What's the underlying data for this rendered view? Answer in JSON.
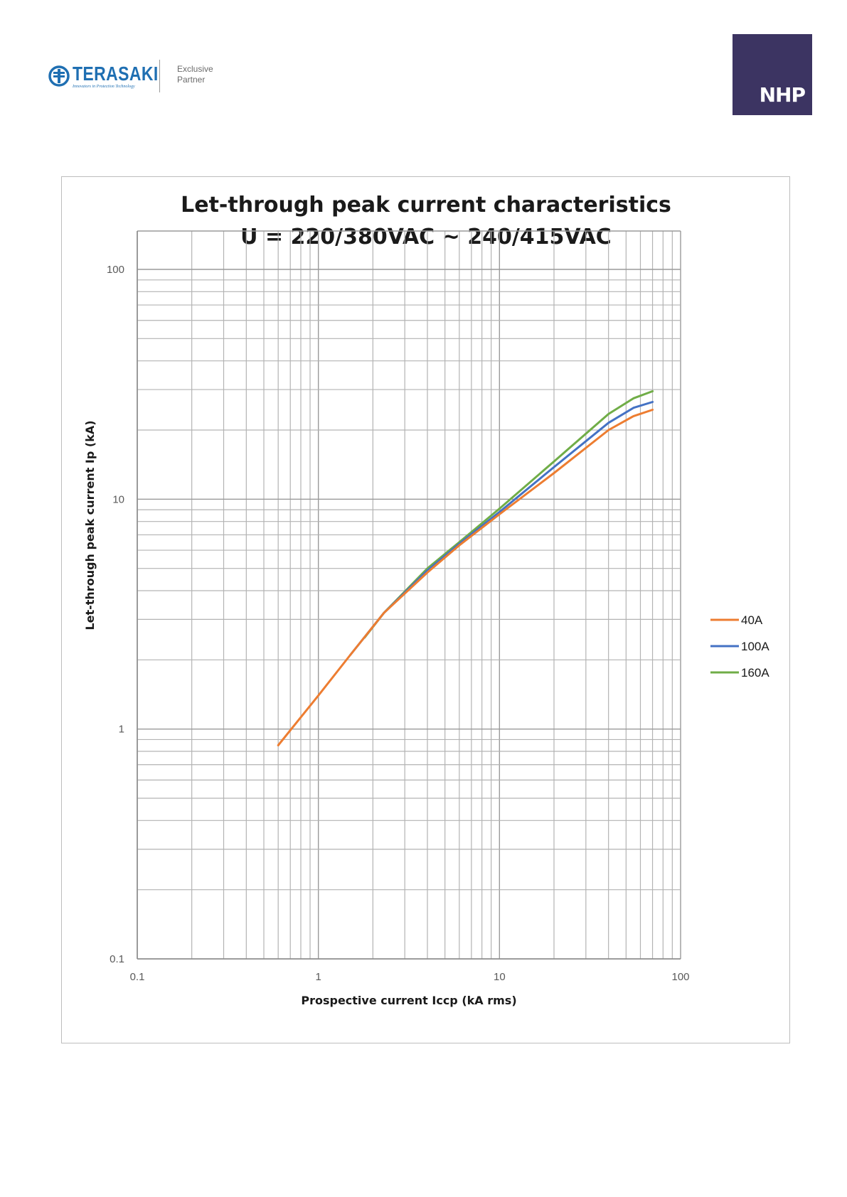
{
  "header": {
    "brand_name": "TERASAKI",
    "brand_tagline": "Innovators in Protection Technology",
    "partner_line1": "Exclusive",
    "partner_line2": "Partner",
    "partner_logo": "NHP",
    "colors": {
      "terasaki_blue": "#1f6fb2",
      "nhp_purple": "#3c3462"
    }
  },
  "chart_data": {
    "type": "line",
    "title": "Let-through peak current characteristics",
    "subtitle": "U = 220/380VAC ~ 240/415VAC",
    "xlabel": "Prospective current Iccp (kA rms)",
    "ylabel": "Let-through peak current Ip (kA)",
    "x_scale": "log",
    "y_scale": "log",
    "xlim": [
      0.1,
      100
    ],
    "ylim": [
      0.1,
      100
    ],
    "x_ticks": [
      "0.1",
      "1",
      "10",
      "100"
    ],
    "y_ticks": [
      "0.1",
      "1",
      "10",
      "100"
    ],
    "grid": true,
    "legend_position": "right",
    "series": [
      {
        "name": "40A",
        "color": "#ed7d31",
        "points": [
          [
            0.6,
            0.85
          ],
          [
            1.0,
            1.4
          ],
          [
            1.5,
            2.1
          ],
          [
            2.3,
            3.2
          ],
          [
            4,
            4.8
          ],
          [
            6,
            6.3
          ],
          [
            10,
            8.6
          ],
          [
            20,
            13
          ],
          [
            40,
            20
          ],
          [
            55,
            23
          ],
          [
            70,
            24.5
          ]
        ]
      },
      {
        "name": "100A",
        "color": "#4472c4",
        "points": [
          [
            1.5,
            2.1
          ],
          [
            2.3,
            3.2
          ],
          [
            4,
            4.9
          ],
          [
            6,
            6.4
          ],
          [
            10,
            8.8
          ],
          [
            20,
            13.8
          ],
          [
            40,
            21.5
          ],
          [
            55,
            25
          ],
          [
            70,
            26.5
          ]
        ]
      },
      {
        "name": "160A",
        "color": "#70ad47",
        "points": [
          [
            1.8,
            2.5
          ],
          [
            2.3,
            3.2
          ],
          [
            4,
            5.0
          ],
          [
            6,
            6.5
          ],
          [
            10,
            9.1
          ],
          [
            20,
            14.6
          ],
          [
            40,
            23.5
          ],
          [
            55,
            27.5
          ],
          [
            70,
            29.5
          ]
        ]
      }
    ]
  }
}
